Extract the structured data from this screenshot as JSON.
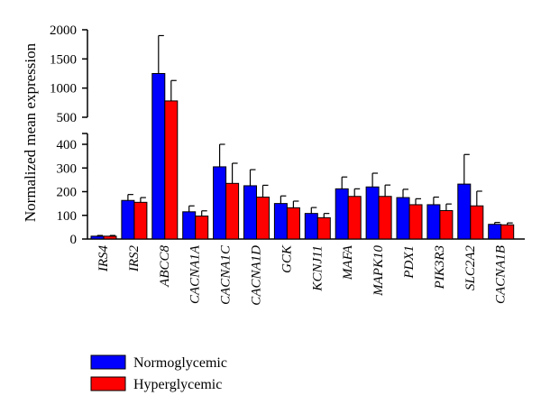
{
  "chart_data": {
    "type": "bar",
    "ylabel": "Normalized mean expression",
    "y_axis_broken": true,
    "lower_ylim": [
      0,
      400
    ],
    "lower_ticks": [
      "0",
      "100",
      "200",
      "300",
      "400"
    ],
    "upper_ylim": [
      500,
      2000
    ],
    "upper_ticks": [
      "500",
      "1000",
      "1500",
      "2000"
    ],
    "categories": [
      "IRS4",
      "IRS2",
      "ABCC8",
      "CACNA1A",
      "CACNA1C",
      "CACNA1D",
      "GCK",
      "KCNJ11",
      "MAFA",
      "MAPK10",
      "PDX1",
      "PIK3R3",
      "SLC2A2",
      "CACNA1B"
    ],
    "series": [
      {
        "name": "Normoglycemic",
        "color": "#0000ff",
        "values": [
          12,
          163,
          1250,
          115,
          305,
          225,
          150,
          108,
          212,
          220,
          175,
          145,
          232,
          62
        ],
        "errors": [
          3,
          25,
          650,
          25,
          95,
          68,
          32,
          25,
          50,
          58,
          35,
          32,
          125,
          8
        ]
      },
      {
        "name": "Hyperglycemic",
        "color": "#ff0000",
        "values": [
          12,
          155,
          780,
          97,
          235,
          177,
          132,
          90,
          180,
          180,
          145,
          120,
          140,
          60
        ],
        "errors": [
          3,
          20,
          350,
          22,
          85,
          50,
          28,
          18,
          32,
          48,
          25,
          28,
          62,
          8
        ]
      }
    ],
    "legend_position": "bottom-left"
  }
}
